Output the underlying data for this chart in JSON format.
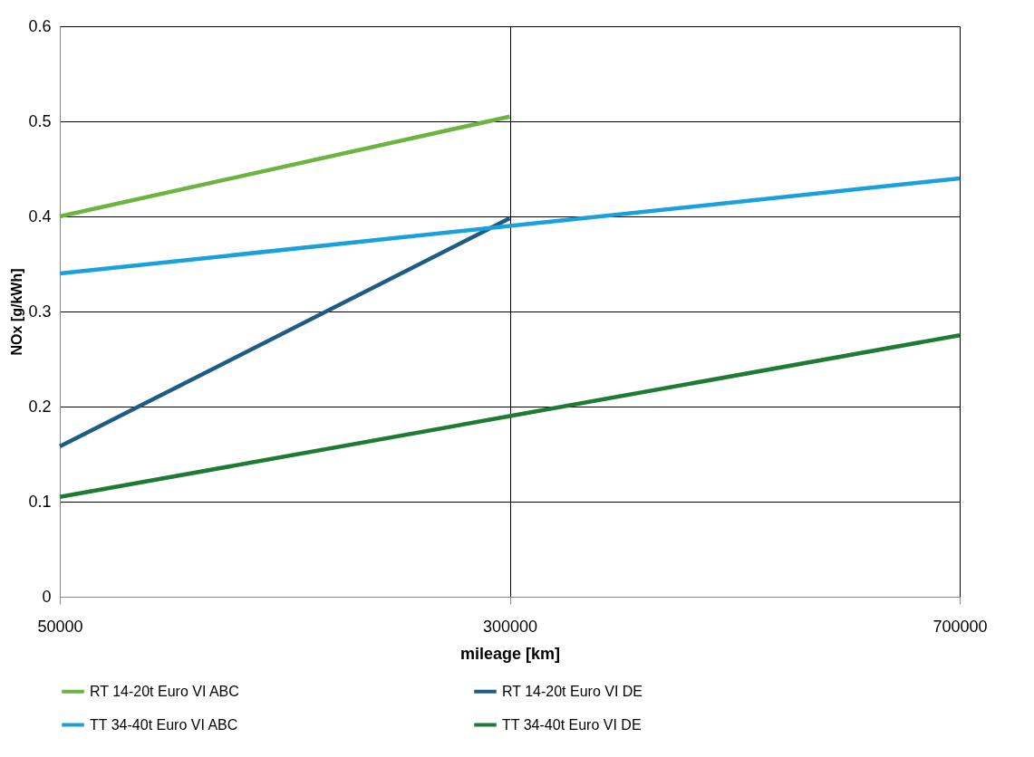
{
  "chart_data": {
    "type": "line",
    "xlabel": "mileage [km]",
    "ylabel": "NOx [g/kWh]",
    "categories": [
      "50000",
      "300000",
      "700000"
    ],
    "ylim": [
      0,
      0.6
    ],
    "yticks": [
      {
        "value": 0,
        "label": "0"
      },
      0.1,
      0.2,
      0.3,
      0.4,
      0.5,
      0.6
    ],
    "grid": true,
    "legend": "bottom",
    "marker": "none",
    "line_style": "solid",
    "series": [
      {
        "name": "RT 14-20t Euro VI ABC",
        "color": "#6db33f",
        "values": [
          0.4,
          0.505,
          null
        ]
      },
      {
        "name": "RT 14-20t Euro VI DE",
        "color": "#1f5c85",
        "values": [
          0.158,
          0.398,
          null
        ]
      },
      {
        "name": "TT 34-40t Euro VI ABC",
        "color": "#1aa0db",
        "values": [
          0.34,
          0.39,
          0.44
        ]
      },
      {
        "name": "TT 34-40t Euro VI DE",
        "color": "#1e7b34",
        "values": [
          0.105,
          0.19,
          0.275
        ]
      }
    ]
  }
}
